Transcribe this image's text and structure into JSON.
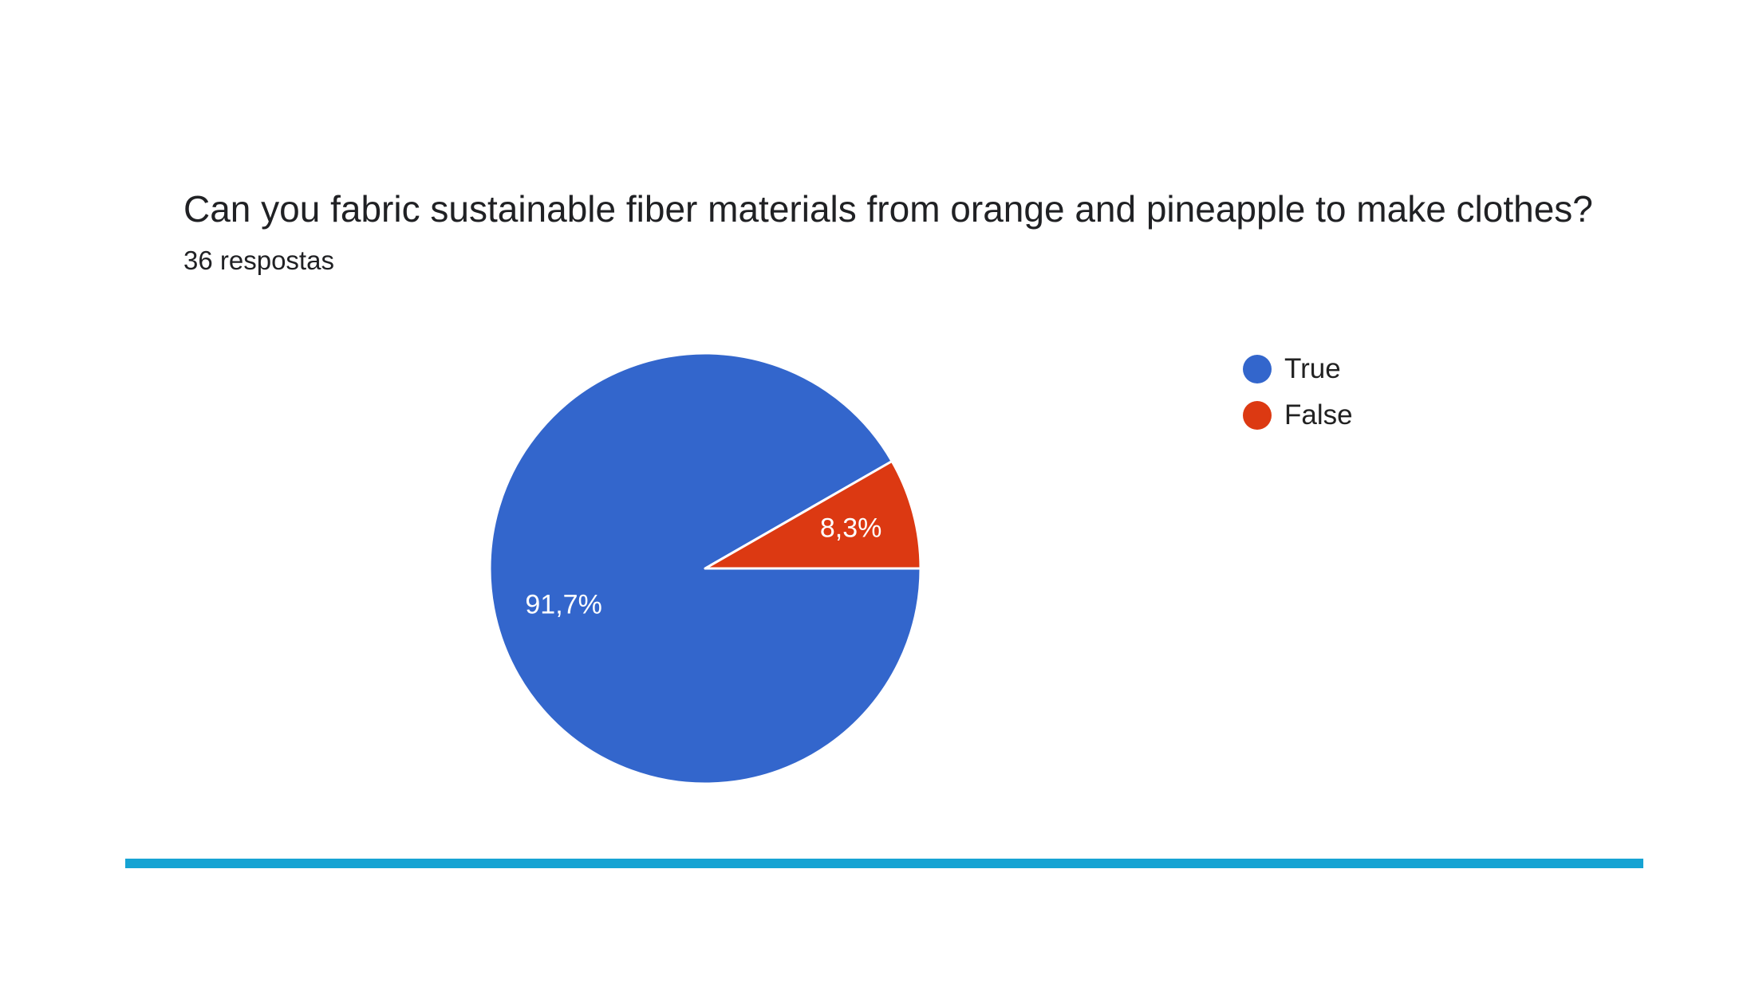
{
  "question": {
    "title": "Can you fabric sustainable fiber materials from orange and pineapple to make clothes?",
    "response_count": "36 respostas"
  },
  "colors": {
    "true": "#3366cc",
    "false": "#dc3912",
    "divider": "#16a3d3"
  },
  "chart_data": {
    "type": "pie",
    "title": "Can you fabric sustainable fiber materials from orange and pineapple to make clothes?",
    "subtitle": "36 respostas",
    "legend_position": "right",
    "slices": [
      {
        "label": "True",
        "value": 91.7,
        "display": "91,7%",
        "color": "#3366cc"
      },
      {
        "label": "False",
        "value": 8.3,
        "display": "8,3%",
        "color": "#dc3912"
      }
    ]
  }
}
